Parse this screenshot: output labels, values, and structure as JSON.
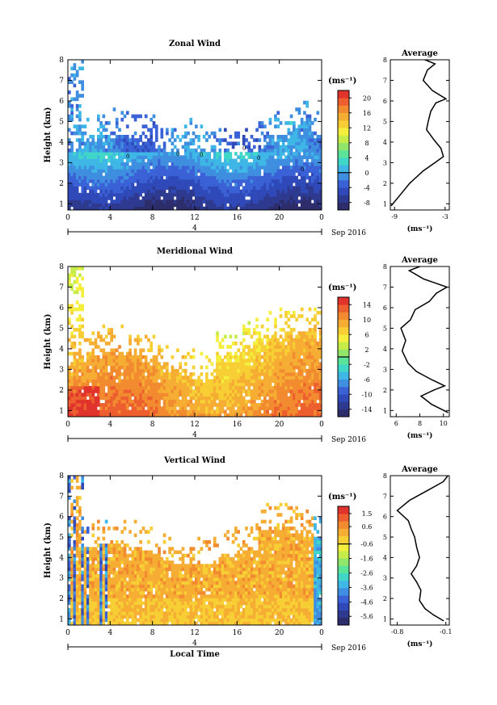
{
  "chart_data": {
    "type": "heatmap",
    "x_axis": {
      "label": "Local Time",
      "ticks": [
        "0",
        "4",
        "8",
        "12",
        "16",
        "20",
        "0"
      ],
      "day_ticks": [
        "4"
      ],
      "date_label": "Sep 2016",
      "range": [
        0,
        24
      ]
    },
    "y_axis": {
      "label": "Height (km)",
      "ticks": [
        "1",
        "2",
        "3",
        "4",
        "5",
        "6",
        "7",
        "8"
      ],
      "range": [
        0.7,
        8
      ]
    },
    "units": "(ms⁻¹)",
    "panels": [
      {
        "title": "Zonal Wind",
        "type": "heatmap",
        "colorbar_ticks": [
          "20",
          "16",
          "12",
          "8",
          "4",
          "0",
          "-4",
          "-8"
        ],
        "colorbar_range": [
          -10,
          22
        ],
        "contour_labels": [
          "0",
          "0",
          "0",
          "0",
          "0",
          "0"
        ],
        "average": {
          "title": "Average",
          "xticks": [
            "-9",
            "-3"
          ],
          "xlim": [
            -9.5,
            -2.5
          ],
          "unit": "(ms⁻¹)",
          "profile": [
            {
              "x": -9.4,
              "y": 0.9
            },
            {
              "x": -8.4,
              "y": 1.4
            },
            {
              "x": -7.2,
              "y": 2.0
            },
            {
              "x": -5.6,
              "y": 2.6
            },
            {
              "x": -4.2,
              "y": 3.0
            },
            {
              "x": -3.2,
              "y": 3.3
            },
            {
              "x": -3.5,
              "y": 3.7
            },
            {
              "x": -4.3,
              "y": 4.1
            },
            {
              "x": -5.2,
              "y": 4.6
            },
            {
              "x": -5.0,
              "y": 5.0
            },
            {
              "x": -4.7,
              "y": 5.5
            },
            {
              "x": -4.1,
              "y": 5.9
            },
            {
              "x": -2.9,
              "y": 6.1
            },
            {
              "x": -4.5,
              "y": 6.5
            },
            {
              "x": -5.6,
              "y": 7.0
            },
            {
              "x": -5.1,
              "y": 7.5
            },
            {
              "x": -4.2,
              "y": 7.8
            },
            {
              "x": -5.4,
              "y": 8.0
            }
          ]
        }
      },
      {
        "title": "Meridional Wind",
        "type": "heatmap",
        "colorbar_ticks": [
          "14",
          "10",
          "6",
          "2",
          "-2",
          "-6",
          "-10",
          "-14"
        ],
        "colorbar_range": [
          -16,
          16
        ],
        "contour_labels": [],
        "average": {
          "title": "Average",
          "xticks": [
            "6",
            "8",
            "10"
          ],
          "xlim": [
            5.5,
            10.5
          ],
          "unit": "(ms⁻¹)",
          "profile": [
            {
              "x": 10.4,
              "y": 0.9
            },
            {
              "x": 9.0,
              "y": 1.3
            },
            {
              "x": 8.1,
              "y": 1.7
            },
            {
              "x": 9.2,
              "y": 2.0
            },
            {
              "x": 10.1,
              "y": 2.2
            },
            {
              "x": 9.0,
              "y": 2.5
            },
            {
              "x": 7.7,
              "y": 2.9
            },
            {
              "x": 7.0,
              "y": 3.3
            },
            {
              "x": 6.5,
              "y": 3.9
            },
            {
              "x": 6.8,
              "y": 4.4
            },
            {
              "x": 6.4,
              "y": 5.0
            },
            {
              "x": 7.2,
              "y": 5.4
            },
            {
              "x": 7.6,
              "y": 5.9
            },
            {
              "x": 8.8,
              "y": 6.3
            },
            {
              "x": 9.4,
              "y": 6.7
            },
            {
              "x": 10.3,
              "y": 7.0
            },
            {
              "x": 8.3,
              "y": 7.4
            },
            {
              "x": 7.1,
              "y": 7.8
            },
            {
              "x": 8.0,
              "y": 8.0
            }
          ]
        }
      },
      {
        "title": "Vertical Wind",
        "type": "heatmap",
        "colorbar_ticks": [
          "1.5",
          "0.6",
          "-0.6",
          "-1.6",
          "-2.6",
          "-3.6",
          "-4.6",
          "-5.6"
        ],
        "colorbar_range": [
          -6.2,
          2.0
        ],
        "contour_labels": [],
        "average": {
          "title": "Average",
          "xticks": [
            "-0.8",
            "-0.1"
          ],
          "xlim": [
            -0.9,
            -0.05
          ],
          "unit": "(ms⁻¹)",
          "profile": [
            {
              "x": -0.13,
              "y": 0.9
            },
            {
              "x": -0.28,
              "y": 1.2
            },
            {
              "x": -0.4,
              "y": 1.5
            },
            {
              "x": -0.48,
              "y": 1.9
            },
            {
              "x": -0.46,
              "y": 2.4
            },
            {
              "x": -0.52,
              "y": 2.8
            },
            {
              "x": -0.6,
              "y": 3.2
            },
            {
              "x": -0.52,
              "y": 3.6
            },
            {
              "x": -0.48,
              "y": 4.0
            },
            {
              "x": -0.52,
              "y": 4.5
            },
            {
              "x": -0.55,
              "y": 5.0
            },
            {
              "x": -0.6,
              "y": 5.4
            },
            {
              "x": -0.64,
              "y": 5.8
            },
            {
              "x": -0.8,
              "y": 6.3
            },
            {
              "x": -0.62,
              "y": 6.8
            },
            {
              "x": -0.35,
              "y": 7.3
            },
            {
              "x": -0.14,
              "y": 7.7
            },
            {
              "x": -0.07,
              "y": 8.0
            }
          ]
        }
      }
    ]
  }
}
